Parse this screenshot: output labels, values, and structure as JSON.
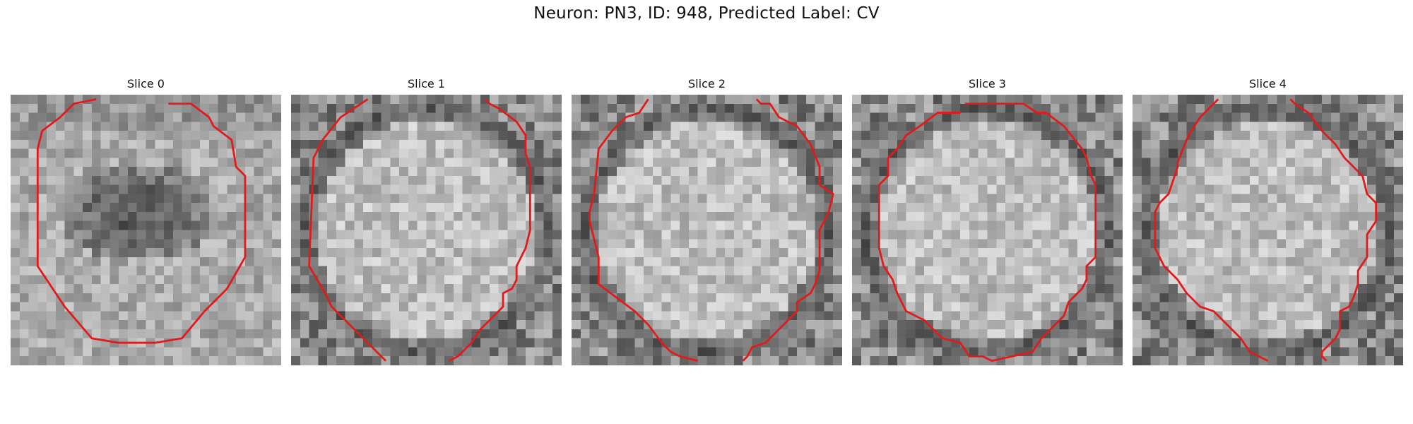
{
  "figure": {
    "title": "Neuron: PN3, ID: 948, Predicted Label: CV",
    "contour_color": "#e31a1c",
    "panels": [
      {
        "title": "Slice 0",
        "seed": 11,
        "pattern": "dark-blob"
      },
      {
        "title": "Slice 1",
        "seed": 23,
        "pattern": "bright-disk"
      },
      {
        "title": "Slice 2",
        "seed": 37,
        "pattern": "bright-disk"
      },
      {
        "title": "Slice 3",
        "seed": 41,
        "pattern": "bright-disk"
      },
      {
        "title": "Slice 4",
        "seed": 59,
        "pattern": "bright-disk"
      }
    ]
  }
}
